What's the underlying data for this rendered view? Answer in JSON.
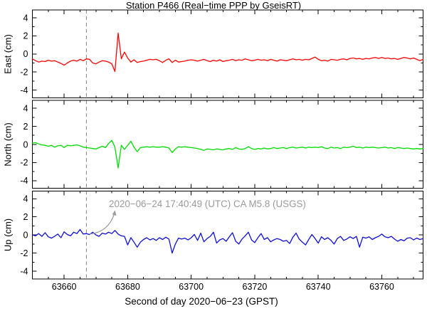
{
  "title": "Station P466 (Real−time PPP by GseisRT)",
  "xlabel": "Second of day 2020−06−23 (GPST)",
  "annotation": {
    "text": "2020−06−24 17:40:49 (UTC) CA M5.8 (USGS)",
    "color": "#9a9a9a"
  },
  "event_line": {
    "t": 63667,
    "style": "dashed",
    "color": "#808080"
  },
  "colors": {
    "axis": "#000000",
    "background": "#ffffff"
  },
  "chart_data": {
    "type": "line",
    "title": "Station P466 (Real−time PPP by GseisRT)",
    "xlabel": "Second of day 2020−06−23 (GPST)",
    "x_start": 63650,
    "x_step": 1,
    "xlim": [
      63650,
      63773
    ],
    "ylim": [
      -4.86,
      4.86
    ],
    "xticks": [
      63660,
      63680,
      63700,
      63720,
      63740,
      63760
    ],
    "yticks": [
      -4,
      -2,
      0,
      2,
      4
    ],
    "minor_x_step": 5,
    "minor_y_step": 1,
    "grid": false,
    "legend": "none",
    "panels": [
      {
        "name": "East",
        "ylabel": "East (cm)",
        "color": "#ff0000",
        "values": [
          -0.55,
          -0.75,
          -0.9,
          -0.8,
          -0.85,
          -0.7,
          -0.8,
          -0.75,
          -0.9,
          -1.05,
          -1.25,
          -1.0,
          -0.8,
          -0.7,
          -0.8,
          -0.6,
          -0.75,
          -0.55,
          -0.6,
          -1.0,
          -1.1,
          -0.9,
          -0.75,
          -0.8,
          -0.9,
          -1.1,
          -1.95,
          2.3,
          -0.55,
          0.2,
          -0.45,
          -0.9,
          -0.65,
          -0.95,
          -0.85,
          -0.8,
          -0.7,
          -0.6,
          -0.65,
          -0.6,
          -0.75,
          -0.95,
          -0.7,
          -0.55,
          -0.95,
          -0.7,
          -0.9,
          -0.85,
          -0.8,
          -0.7,
          -0.65,
          -0.7,
          -0.8,
          -0.7,
          -0.6,
          -0.75,
          -0.85,
          -0.7,
          -0.8,
          -0.65,
          -0.85,
          -0.75,
          -0.7,
          -0.6,
          -0.75,
          -0.65,
          -0.7,
          -0.55,
          -0.65,
          -0.75,
          -0.7,
          -0.6,
          -0.7,
          -0.65,
          -0.75,
          -0.6,
          -0.7,
          -0.8,
          -0.65,
          -0.7,
          -0.75,
          -0.65,
          -0.55,
          -0.65,
          -0.6,
          -0.7,
          -0.6,
          -0.65,
          -0.5,
          -0.35,
          -0.6,
          -0.75,
          -0.7,
          -0.8,
          -0.6,
          -0.65,
          -0.7,
          -0.6,
          -0.55,
          -0.65,
          -0.5,
          -0.45,
          -0.55,
          -0.5,
          -0.6,
          -0.5,
          -0.55,
          -0.45,
          -0.4,
          -0.5,
          -0.4,
          -0.5,
          -0.45,
          -0.55,
          -0.5,
          -0.6,
          -0.5,
          -0.4,
          -0.45,
          -0.55,
          -0.45,
          -0.6,
          -0.75,
          -0.6
        ]
      },
      {
        "name": "North",
        "ylabel": "North (cm)",
        "color": "#00dd00",
        "values": [
          0.15,
          0.2,
          0.05,
          -0.05,
          -0.1,
          -0.2,
          -0.1,
          -0.3,
          -0.15,
          -0.1,
          -0.35,
          -0.1,
          -0.15,
          -0.1,
          -0.05,
          -0.15,
          -0.3,
          -0.35,
          -0.4,
          -0.45,
          -0.5,
          -0.35,
          -0.2,
          -0.35,
          0.1,
          0.45,
          -0.3,
          -2.6,
          -0.1,
          -0.55,
          -0.1,
          0.35,
          -0.3,
          -0.8,
          -0.35,
          -0.3,
          -0.25,
          -0.3,
          -0.25,
          -0.3,
          -0.3,
          -0.25,
          -0.3,
          -0.4,
          -0.9,
          -0.5,
          -0.25,
          -0.3,
          -0.25,
          -0.3,
          -0.35,
          -0.4,
          -0.45,
          -0.55,
          -0.65,
          -0.5,
          -0.55,
          -0.6,
          -0.5,
          -0.55,
          -0.6,
          -0.5,
          -0.45,
          -0.55,
          -0.35,
          -0.5,
          -0.55,
          -0.45,
          -0.25,
          -0.45,
          -0.55,
          -0.45,
          -0.5,
          -0.4,
          -0.5,
          -0.45,
          -0.35,
          -0.45,
          -0.4,
          -0.35,
          -0.45,
          -0.35,
          -0.3,
          -0.4,
          -0.35,
          -0.3,
          -0.4,
          -0.3,
          -0.35,
          -0.3,
          -0.35,
          -0.25,
          -0.4,
          -0.45,
          -0.3,
          -0.4,
          -0.35,
          -0.45,
          -0.3,
          -0.35,
          -0.3,
          -0.2,
          -0.35,
          -0.3,
          -0.4,
          -0.3,
          -0.35,
          -0.3,
          -0.35,
          -0.4,
          -0.35,
          -0.3,
          -0.4,
          -0.35,
          -0.45,
          -0.35,
          -0.4,
          -0.45,
          -0.4,
          -0.45,
          -0.5,
          -0.45,
          -0.5,
          -0.45
        ]
      },
      {
        "name": "Up",
        "ylabel": "Up (cm)",
        "color": "#0f0fd6",
        "values": [
          0.0,
          -0.1,
          0.15,
          -0.15,
          0.25,
          -0.2,
          -0.35,
          -0.15,
          0.1,
          -0.3,
          0.35,
          0.05,
          -0.1,
          0.3,
          0.15,
          0.6,
          0.1,
          0.15,
          0.05,
          0.3,
          0.0,
          -0.15,
          0.2,
          0.1,
          0.3,
          0.15,
          0.5,
          0.1,
          -0.1,
          -0.15,
          -1.1,
          -0.3,
          -0.8,
          -1.35,
          -0.8,
          -0.5,
          -0.3,
          -0.55,
          -0.4,
          -0.6,
          -0.3,
          -0.5,
          -0.25,
          -0.45,
          -2.0,
          -1.0,
          -0.35,
          -0.45,
          -0.35,
          -0.55,
          -0.3,
          0.05,
          -0.6,
          0.2,
          -0.75,
          -0.4,
          -0.15,
          0.3,
          -0.9,
          -0.55,
          -0.4,
          -0.7,
          -0.2,
          0.25,
          -0.7,
          -1.0,
          -0.45,
          -0.1,
          0.3,
          -0.55,
          -0.85,
          -0.3,
          0.15,
          -0.5,
          -0.3,
          -0.75,
          -0.55,
          -0.4,
          -0.5,
          -0.7,
          -0.6,
          -0.95,
          -0.25,
          0.2,
          -0.45,
          -0.8,
          -1.1,
          -0.5,
          0.05,
          -0.4,
          -0.9,
          -0.2,
          -0.5,
          -0.3,
          -0.6,
          -1.0,
          -0.4,
          -0.15,
          -0.6,
          -0.45,
          -0.2,
          -0.4,
          -0.15,
          -1.35,
          -0.25,
          -0.35,
          -0.2,
          -0.5,
          -0.3,
          -0.15,
          0.1,
          -0.2,
          -0.3,
          -0.15,
          -0.45,
          -0.7,
          -0.5,
          -0.65,
          -0.35,
          -0.3,
          -0.55,
          -0.35,
          -0.5,
          -0.4
        ]
      }
    ]
  }
}
